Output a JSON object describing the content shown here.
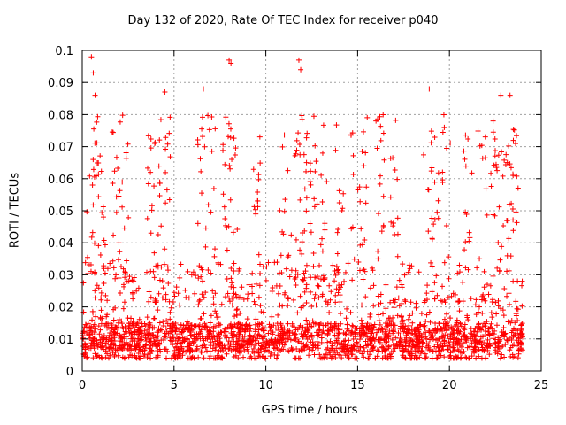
{
  "chart_data": {
    "type": "scatter",
    "title": "Day 132 of 2020, Rate Of TEC Index for receiver p040",
    "xlabel": "GPS time / hours",
    "ylabel": "ROTI / TECUs",
    "xlim": [
      0,
      25
    ],
    "ylim": [
      0,
      0.1
    ],
    "xticks": [
      "0",
      "5",
      "10",
      "15",
      "20",
      "25"
    ],
    "yticks": [
      "0",
      "0.01",
      "0.02",
      "0.03",
      "0.04",
      "0.05",
      "0.06",
      "0.07",
      "0.08",
      "0.09",
      "0.1"
    ],
    "grid": true,
    "marker": "+",
    "color": "#ff0000",
    "peaks": [
      {
        "x": 0.5,
        "y": 0.098
      },
      {
        "x": 0.6,
        "y": 0.093
      },
      {
        "x": 0.7,
        "y": 0.086
      },
      {
        "x": 4.5,
        "y": 0.087
      },
      {
        "x": 6.6,
        "y": 0.088
      },
      {
        "x": 8.0,
        "y": 0.097
      },
      {
        "x": 8.1,
        "y": 0.096
      },
      {
        "x": 11.8,
        "y": 0.097
      },
      {
        "x": 11.9,
        "y": 0.094
      },
      {
        "x": 18.9,
        "y": 0.088
      },
      {
        "x": 22.8,
        "y": 0.086
      },
      {
        "x": 23.3,
        "y": 0.086
      },
      {
        "x": 16.0,
        "y": 0.078
      },
      {
        "x": 13.1,
        "y": 0.068
      }
    ]
  }
}
